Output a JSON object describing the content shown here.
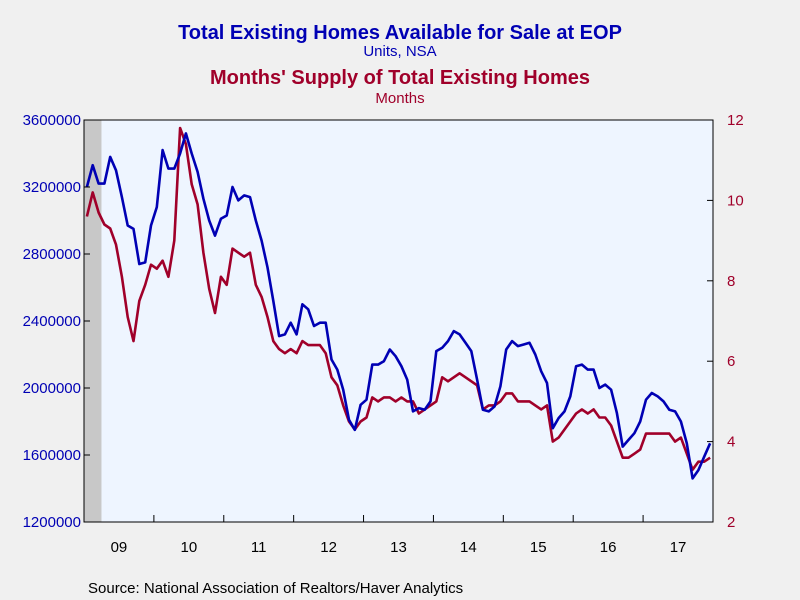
{
  "chart_data": {
    "type": "line",
    "title": "Total Existing Homes Available for Sale at EOP",
    "subtitle": "Units, NSA",
    "title2": "Months' Supply of Total Existing Homes",
    "subtitle2": "Months",
    "source": "Source:  National Association of Realtors/Haver Analytics",
    "colors": {
      "inventory": "#0000b4",
      "supply": "#a0002a",
      "plot_bg": "#eef5ff",
      "recession": "#c8c8c8"
    },
    "x_start": 2009.0,
    "x_end": 2017.917,
    "x_labels": [
      "09",
      "10",
      "11",
      "12",
      "13",
      "14",
      "15",
      "16",
      "17"
    ],
    "recession_band": [
      2009.0,
      2009.25
    ],
    "y_left": {
      "ylim": [
        1200000,
        3600000
      ],
      "ticks": [
        "1200000",
        "1600000",
        "2000000",
        "2400000",
        "2800000",
        "3200000",
        "3600000"
      ]
    },
    "y_right": {
      "ylim": [
        2,
        12
      ],
      "ticks": [
        "2",
        "4",
        "6",
        "8",
        "10",
        "12"
      ]
    },
    "series": [
      {
        "axis": "left",
        "values": [
          3200000,
          3330000,
          3220000,
          3220000,
          3380000,
          3300000,
          3140000,
          2970000,
          2950000,
          2740000,
          2750000,
          2970000,
          3080000,
          3420000,
          3310000,
          3310000,
          3400000,
          3520000,
          3400000,
          3290000,
          3130000,
          3000000,
          2910000,
          3010000,
          3030000,
          3200000,
          3120000,
          3150000,
          3140000,
          3000000,
          2880000,
          2720000,
          2520000,
          2310000,
          2320000,
          2390000,
          2320000,
          2500000,
          2470000,
          2370000,
          2390000,
          2390000,
          2170000,
          2110000,
          1990000,
          1810000,
          1750000,
          1900000,
          1930000,
          2140000,
          2140000,
          2160000,
          2230000,
          2190000,
          2130000,
          2050000,
          1860000,
          1880000,
          1870000,
          1920000,
          2220000,
          2240000,
          2280000,
          2340000,
          2320000,
          2270000,
          2220000,
          2050000,
          1870000,
          1860000,
          1890000,
          2010000,
          2230000,
          2280000,
          2250000,
          2260000,
          2270000,
          2200000,
          2100000,
          2030000,
          1760000,
          1820000,
          1860000,
          1950000,
          2130000,
          2140000,
          2110000,
          2110000,
          2000000,
          2020000,
          1990000,
          1850000,
          1650000,
          1690000,
          1730000,
          1800000,
          1930000,
          1970000,
          1950000,
          1920000,
          1870000,
          1860000,
          1800000,
          1670000,
          1460000,
          1510000,
          1590000,
          1670000
        ]
      },
      {
        "axis": "right",
        "values": [
          9.6,
          10.2,
          9.7,
          9.4,
          9.3,
          8.9,
          8.1,
          7.1,
          6.5,
          7.5,
          7.9,
          8.4,
          8.3,
          8.5,
          8.1,
          9.0,
          11.8,
          11.4,
          10.4,
          9.9,
          8.7,
          7.8,
          7.2,
          8.1,
          7.9,
          8.8,
          8.7,
          8.6,
          8.7,
          7.9,
          7.6,
          7.1,
          6.5,
          6.3,
          6.2,
          6.3,
          6.2,
          6.5,
          6.4,
          6.4,
          6.4,
          6.2,
          5.6,
          5.4,
          4.9,
          4.5,
          4.3,
          4.5,
          4.6,
          5.1,
          5.0,
          5.1,
          5.1,
          5.0,
          5.1,
          5.0,
          5.0,
          4.7,
          4.8,
          4.9,
          5.0,
          5.6,
          5.5,
          5.6,
          5.7,
          5.6,
          5.5,
          5.4,
          4.8,
          4.9,
          4.9,
          5.0,
          5.2,
          5.2,
          5.0,
          5.0,
          5.0,
          4.9,
          4.8,
          4.9,
          4.0,
          4.1,
          4.3,
          4.5,
          4.7,
          4.8,
          4.7,
          4.8,
          4.6,
          4.6,
          4.4,
          4.0,
          3.6,
          3.6,
          3.7,
          3.8,
          4.2,
          4.2,
          4.2,
          4.2,
          4.2,
          4.0,
          4.1,
          3.7,
          3.3,
          3.5,
          3.5,
          3.6
        ]
      }
    ]
  }
}
